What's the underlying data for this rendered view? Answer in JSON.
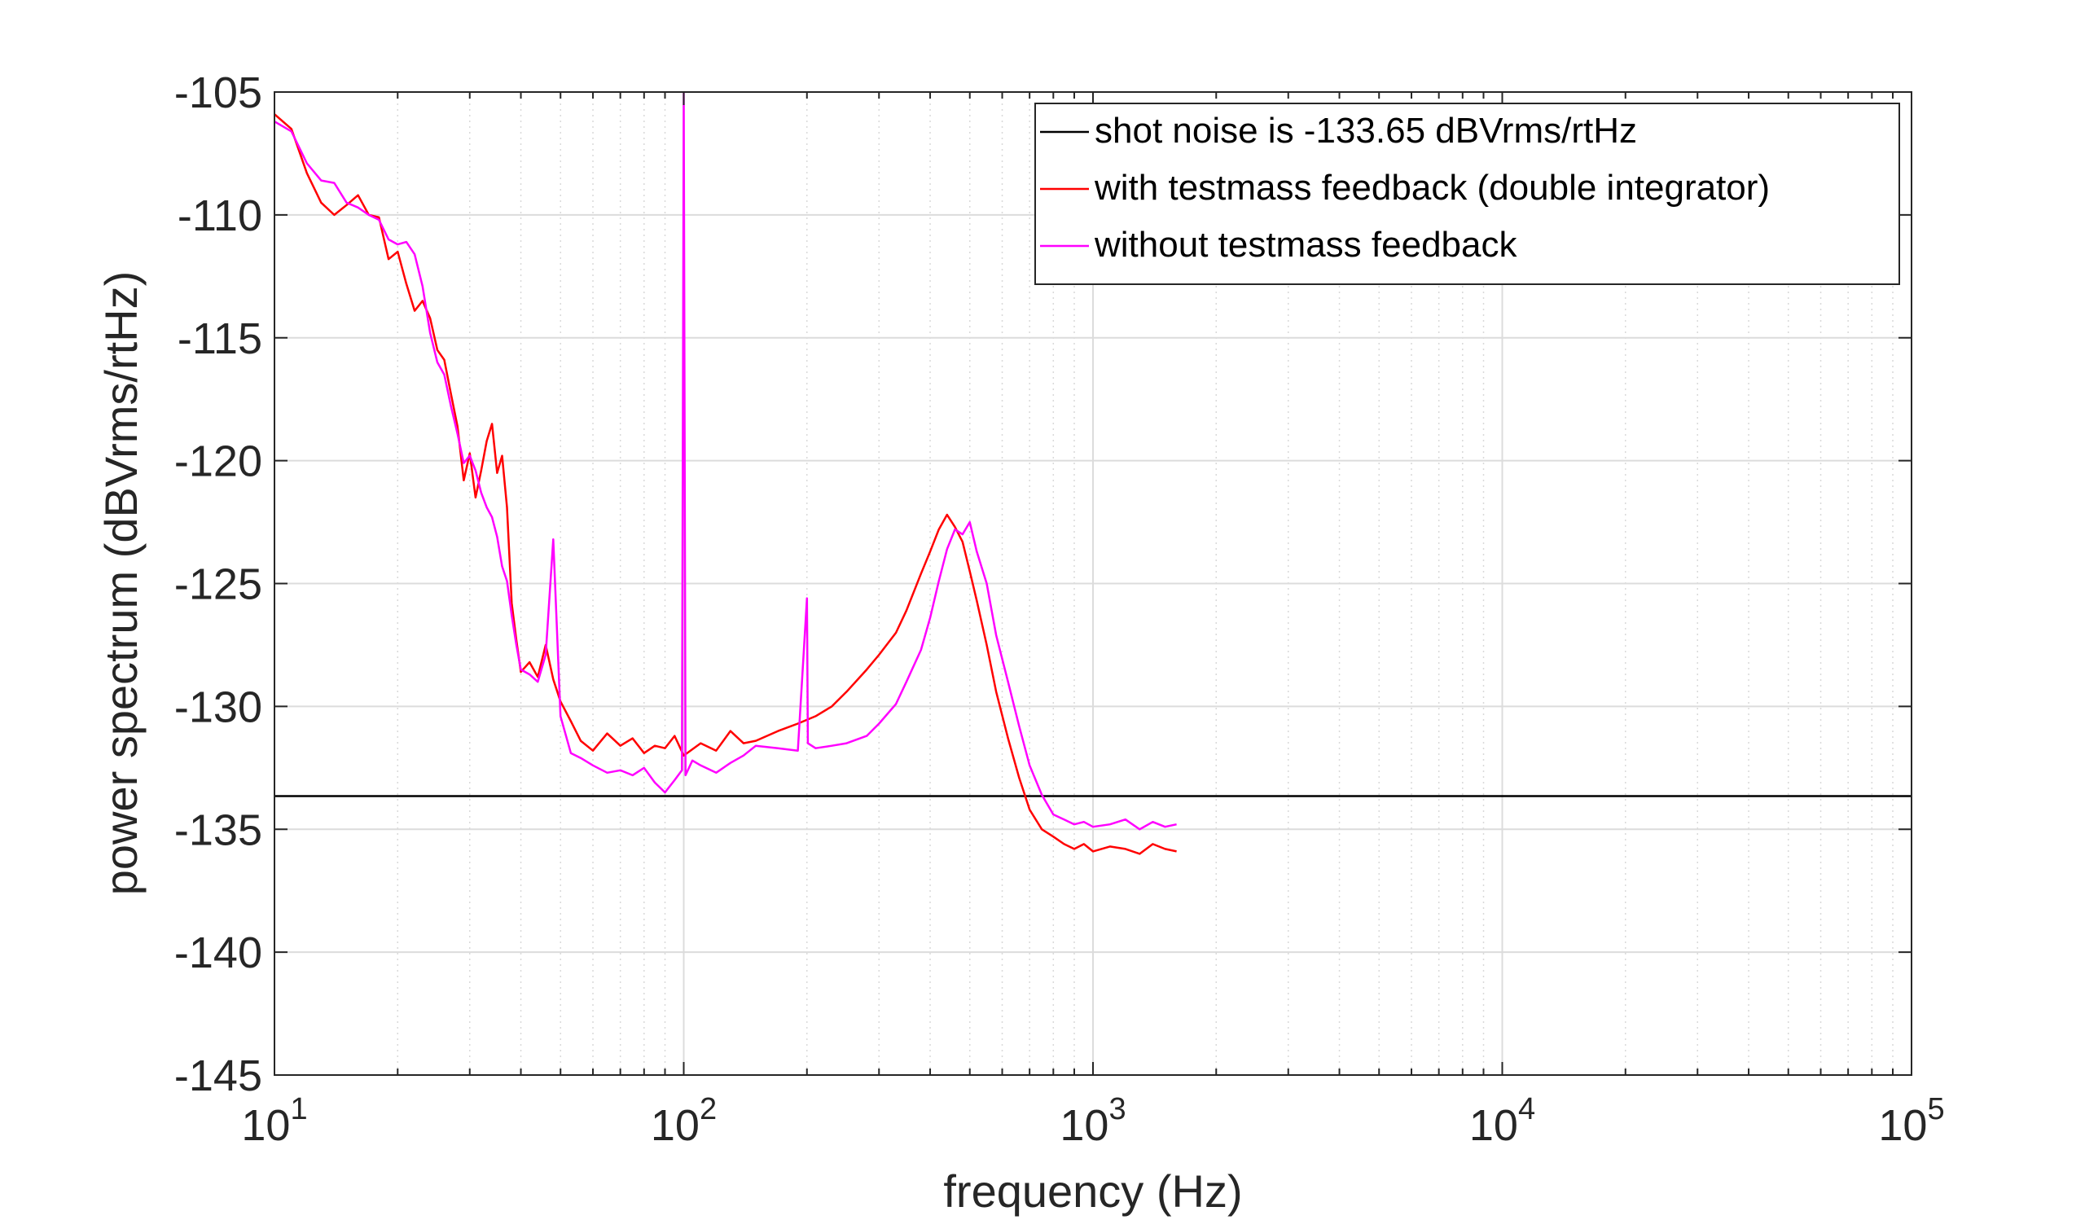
{
  "chart_data": {
    "type": "line",
    "xscale": "log",
    "xlabel": "frequency (Hz)",
    "ylabel": "power spectrum (dBVrms/rtHz)",
    "xlim": [
      10,
      100000
    ],
    "ylim": [
      -145,
      -105
    ],
    "xticks": [
      {
        "value": 10,
        "base": "10",
        "exp": "1"
      },
      {
        "value": 100,
        "base": "10",
        "exp": "2"
      },
      {
        "value": 1000,
        "base": "10",
        "exp": "3"
      },
      {
        "value": 10000,
        "base": "10",
        "exp": "4"
      },
      {
        "value": 100000,
        "base": "10",
        "exp": "5"
      }
    ],
    "yticks": [
      -145,
      -140,
      -135,
      -130,
      -125,
      -120,
      -115,
      -110,
      -105
    ],
    "ytick_labels": [
      "-145",
      "-140",
      "-135",
      "-130",
      "-125",
      "-120",
      "-115",
      "-110",
      "-105"
    ],
    "grid": true,
    "minor_grid": true,
    "legend_position": "top-right",
    "series": [
      {
        "name": "shot noise is -133.65 dBVrms/rtHz",
        "color": "#000000",
        "kind": "hline",
        "y": -133.65,
        "x": [
          10,
          100000
        ]
      },
      {
        "name": "with testmass feedback (double integrator)",
        "color": "#ff0000",
        "kind": "spectrum",
        "x": [
          10,
          11,
          12,
          13,
          14,
          15,
          16,
          17,
          18,
          19,
          20,
          21,
          22,
          23,
          24,
          25,
          26,
          27,
          28,
          29,
          30,
          31,
          32,
          33,
          34,
          35,
          36,
          37,
          38,
          39,
          40,
          42,
          44,
          46,
          48,
          50,
          53,
          56,
          60,
          65,
          70,
          75,
          80,
          85,
          90,
          95,
          100,
          110,
          120,
          130,
          140,
          150,
          170,
          190,
          210,
          230,
          250,
          280,
          300,
          330,
          350,
          380,
          400,
          420,
          440,
          460,
          480,
          500,
          520,
          550,
          580,
          620,
          660,
          700,
          750,
          800,
          850,
          900,
          950,
          1000,
          1100,
          1200,
          1300,
          1400,
          1500,
          1600
        ],
        "y": [
          -105.9,
          -106.5,
          -108.3,
          -109.5,
          -110.0,
          -109.6,
          -109.2,
          -110.0,
          -110.1,
          -111.8,
          -111.5,
          -112.8,
          -113.9,
          -113.5,
          -114.2,
          -115.5,
          -115.9,
          -117.3,
          -118.6,
          -120.8,
          -119.7,
          -121.5,
          -120.4,
          -119.2,
          -118.5,
          -120.5,
          -119.8,
          -121.9,
          -125.8,
          -127.3,
          -128.6,
          -128.2,
          -128.8,
          -127.5,
          -128.9,
          -129.8,
          -130.6,
          -131.4,
          -131.8,
          -131.1,
          -131.6,
          -131.3,
          -131.9,
          -131.6,
          -131.7,
          -131.2,
          -132.0,
          -131.5,
          -131.8,
          -131.0,
          -131.5,
          -131.4,
          -131.0,
          -130.7,
          -130.4,
          -130.0,
          -129.4,
          -128.5,
          -127.9,
          -127.0,
          -126.1,
          -124.6,
          -123.7,
          -122.8,
          -122.2,
          -122.7,
          -123.3,
          -124.5,
          -125.7,
          -127.5,
          -129.4,
          -131.3,
          -132.9,
          -134.2,
          -135.0,
          -135.3,
          -135.6,
          -135.8,
          -135.6,
          -135.9,
          -135.7,
          -135.8,
          -136.0,
          -135.6,
          -135.8,
          -135.9
        ]
      },
      {
        "name": "without testmass feedback",
        "color": "#ff00ff",
        "kind": "spectrum",
        "x": [
          10,
          11,
          12,
          13,
          14,
          15,
          16,
          17,
          18,
          19,
          20,
          21,
          22,
          23,
          24,
          25,
          26,
          27,
          28,
          29,
          30,
          31,
          32,
          33,
          34,
          35,
          36,
          37,
          38,
          39,
          40,
          42,
          44,
          46,
          48,
          50,
          53,
          56,
          60,
          65,
          70,
          75,
          80,
          85,
          90,
          95,
          99,
          100,
          101,
          105,
          110,
          120,
          130,
          140,
          150,
          170,
          190,
          200,
          201,
          210,
          230,
          250,
          280,
          300,
          330,
          350,
          380,
          400,
          420,
          440,
          460,
          480,
          500,
          520,
          550,
          580,
          620,
          660,
          700,
          750,
          800,
          850,
          900,
          950,
          1000,
          1100,
          1200,
          1300,
          1400,
          1500,
          1600
        ],
        "y": [
          -106.2,
          -106.6,
          -107.9,
          -108.6,
          -108.7,
          -109.5,
          -109.7,
          -110.0,
          -110.2,
          -111.0,
          -111.2,
          -111.1,
          -111.6,
          -112.9,
          -114.8,
          -116.0,
          -116.5,
          -117.8,
          -118.9,
          -120.1,
          -119.8,
          -120.4,
          -121.3,
          -121.9,
          -122.3,
          -123.1,
          -124.3,
          -124.9,
          -126.3,
          -127.5,
          -128.5,
          -128.7,
          -129.0,
          -127.9,
          -123.2,
          -130.4,
          -131.9,
          -132.1,
          -132.4,
          -132.7,
          -132.6,
          -132.8,
          -132.5,
          -133.1,
          -133.5,
          -133.0,
          -132.6,
          -105.0,
          -132.8,
          -132.2,
          -132.4,
          -132.7,
          -132.3,
          -132.0,
          -131.6,
          -131.7,
          -131.8,
          -125.6,
          -131.5,
          -131.7,
          -131.6,
          -131.5,
          -131.2,
          -130.7,
          -129.9,
          -129.0,
          -127.7,
          -126.4,
          -124.9,
          -123.6,
          -122.8,
          -123.0,
          -122.5,
          -123.7,
          -125.0,
          -127.1,
          -129.0,
          -130.8,
          -132.4,
          -133.6,
          -134.4,
          -134.6,
          -134.8,
          -134.7,
          -134.9,
          -134.8,
          -134.6,
          -135.0,
          -134.7,
          -134.9,
          -134.8
        ]
      }
    ]
  }
}
